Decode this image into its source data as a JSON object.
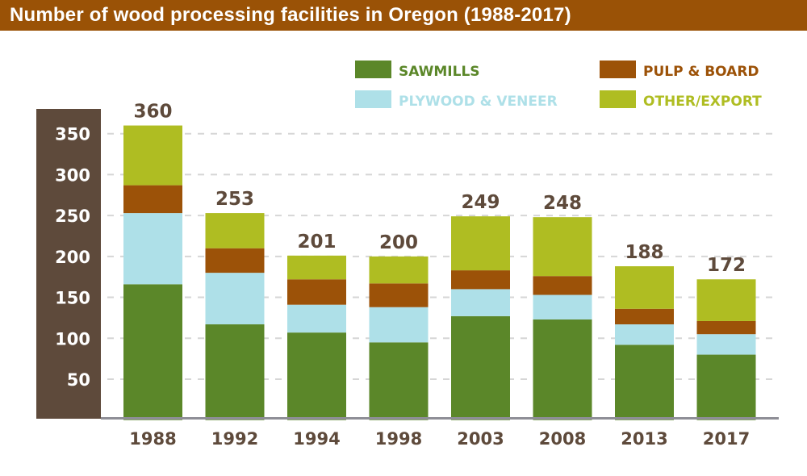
{
  "chart_data": {
    "type": "bar",
    "stacked": true,
    "title": "Number of wood processing facilities in Oregon (1988-2017)",
    "xlabel": "",
    "ylabel": "",
    "ylim": [
      0,
      380
    ],
    "yticks": [
      50,
      100,
      150,
      200,
      250,
      300,
      350
    ],
    "grid": true,
    "legend_position": "top-right",
    "categories": [
      "1988",
      "1992",
      "1994",
      "1998",
      "2003",
      "2008",
      "2013",
      "2017"
    ],
    "totals": [
      360,
      253,
      201,
      200,
      249,
      248,
      188,
      172
    ],
    "series": [
      {
        "name": "SAWMILLS",
        "color": "#5b8729",
        "values": [
          166,
          117,
          107,
          95,
          127,
          123,
          92,
          80
        ]
      },
      {
        "name": "PLYWOOD & VENEER",
        "color": "#aee0e8",
        "values": [
          87,
          63,
          34,
          43,
          33,
          30,
          25,
          25
        ]
      },
      {
        "name": "PULP & BOARD",
        "color": "#9c5208",
        "values": [
          34,
          30,
          31,
          29,
          23,
          23,
          19,
          16
        ]
      },
      {
        "name": "OTHER/EXPORT",
        "color": "#afbd22",
        "values": [
          73,
          43,
          29,
          33,
          66,
          72,
          52,
          51
        ]
      }
    ]
  },
  "colors": {
    "title_bar": "#9a5206",
    "axis_panel": "#5e4a3b",
    "label_text": "#5e4a3b"
  }
}
